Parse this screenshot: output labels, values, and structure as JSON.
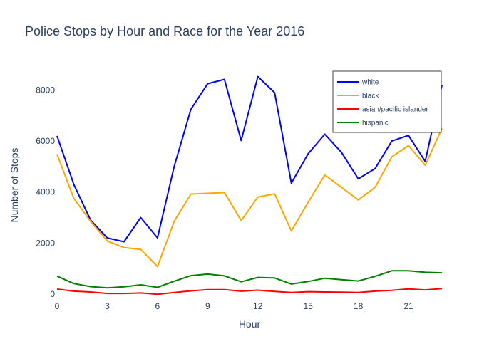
{
  "chart_data": {
    "type": "line",
    "title": "Police Stops by Hour and Race for the Year 2016",
    "xlabel": "Hour",
    "ylabel": "Number of Stops",
    "x": [
      0,
      1,
      2,
      3,
      4,
      5,
      6,
      7,
      8,
      9,
      10,
      11,
      12,
      13,
      14,
      15,
      16,
      17,
      18,
      19,
      20,
      21,
      22,
      23
    ],
    "xlim": [
      0,
      23
    ],
    "ylim": [
      -200,
      9300
    ],
    "xticks": [
      0,
      3,
      6,
      9,
      12,
      15,
      18,
      21
    ],
    "yticks": [
      0,
      2000,
      4000,
      6000,
      8000
    ],
    "grid": false,
    "legend_position": "top-right",
    "series": [
      {
        "name": "white",
        "color": "#0000ff",
        "values": [
          6200,
          4300,
          2900,
          2200,
          2050,
          3000,
          2200,
          5000,
          7250,
          8250,
          8420,
          6020,
          8530,
          7900,
          4350,
          5500,
          6270,
          5550,
          4520,
          4920,
          6000,
          6220,
          5200,
          8200
        ]
      },
      {
        "name": "black",
        "color": "#ffa500",
        "values": [
          5480,
          3750,
          2850,
          2080,
          1820,
          1750,
          1070,
          2850,
          3920,
          3950,
          3980,
          2880,
          3800,
          3930,
          2470,
          3600,
          4670,
          4180,
          3690,
          4180,
          5380,
          5820,
          5050,
          6500
        ]
      },
      {
        "name": "asian/pacific islander",
        "color": "#ff0000",
        "values": [
          190,
          110,
          80,
          20,
          20,
          40,
          -10,
          60,
          120,
          170,
          170,
          110,
          150,
          100,
          60,
          90,
          80,
          70,
          60,
          110,
          140,
          200,
          160,
          210
        ]
      },
      {
        "name": "hispanic",
        "color": "#008000",
        "values": [
          700,
          410,
          290,
          240,
          280,
          360,
          260,
          500,
          720,
          780,
          710,
          480,
          650,
          630,
          390,
          490,
          620,
          560,
          510,
          690,
          910,
          910,
          850,
          830
        ]
      }
    ]
  }
}
